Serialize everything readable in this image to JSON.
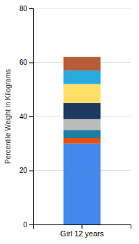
{
  "chart_data": {
    "type": "bar",
    "stacked": true,
    "categories": [
      "Girl 12 years"
    ],
    "series": [
      {
        "color": "#4488EE",
        "values": [
          30
        ]
      },
      {
        "color": "#E85010",
        "values": [
          2
        ]
      },
      {
        "color": "#1A7FA0",
        "values": [
          3
        ]
      },
      {
        "color": "#BBBBBB",
        "values": [
          4
        ]
      },
      {
        "color": "#1C3A5E",
        "values": [
          6
        ]
      },
      {
        "color": "#FFE066",
        "values": [
          7
        ]
      },
      {
        "color": "#29AADF",
        "values": [
          5
        ]
      },
      {
        "color": "#B85C38",
        "values": [
          5
        ]
      }
    ],
    "ylabel": "Percentile Weight in Kilograms",
    "ylim": [
      0,
      80
    ],
    "yticks": [
      0,
      20,
      40,
      60,
      80
    ],
    "grid": true
  }
}
